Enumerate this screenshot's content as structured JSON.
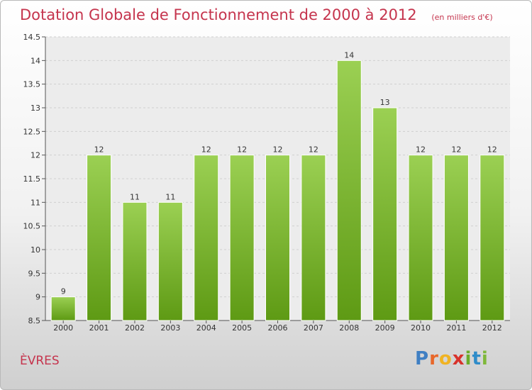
{
  "colors": {
    "accent": "#c5344d",
    "bar_top": "#9bd053",
    "bar_bottom": "#5e9a14"
  },
  "logo": {
    "text": "Proxiti",
    "letters": [
      "P",
      "r",
      "o",
      "x",
      "i",
      "t",
      "i"
    ]
  },
  "commune": "ÈVRES",
  "chart_data": {
    "type": "bar",
    "title": "Dotation Globale de Fonctionnement de 2000 à 2012",
    "unit": "(en milliers d'€)",
    "xlabel": "",
    "ylabel": "",
    "categories": [
      "2000",
      "2001",
      "2002",
      "2003",
      "2004",
      "2005",
      "2006",
      "2007",
      "2008",
      "2009",
      "2010",
      "2011",
      "2012"
    ],
    "values": [
      9,
      12,
      11,
      11,
      12,
      12,
      12,
      12,
      14,
      13,
      12,
      12,
      12
    ],
    "ylim": [
      8.5,
      14.5
    ],
    "yticks": [
      "8.5",
      "9",
      "9.5",
      "10",
      "10.5",
      "11",
      "11.5",
      "12",
      "12.5",
      "13",
      "13.5",
      "14",
      "14.5"
    ],
    "grid": true
  }
}
